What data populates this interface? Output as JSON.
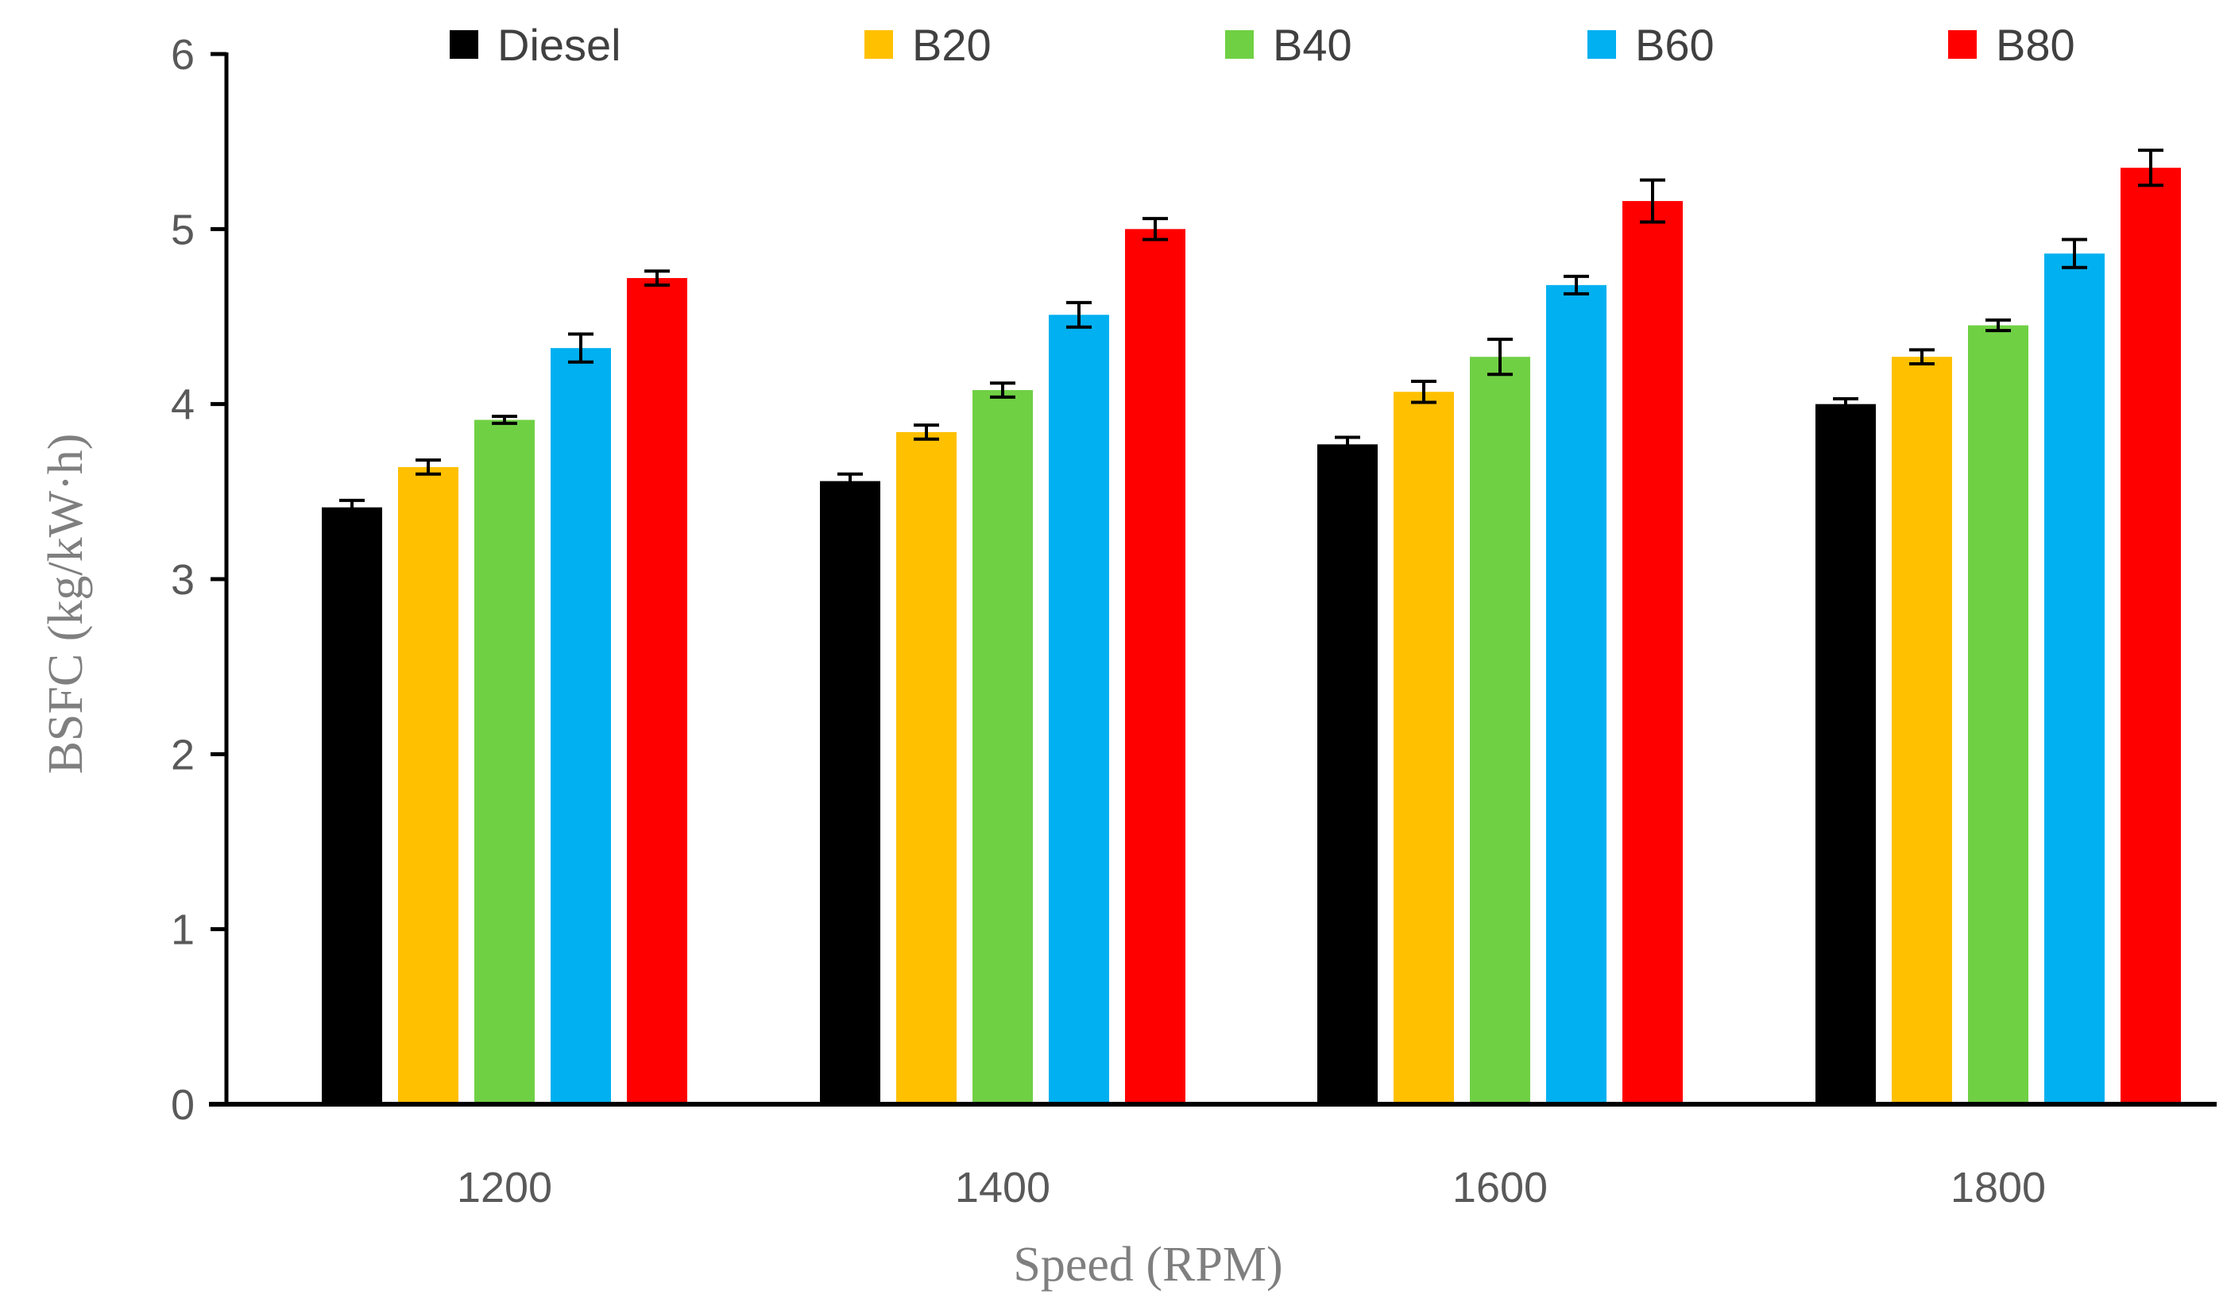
{
  "chart_data": {
    "type": "bar",
    "title": "",
    "xlabel": "Speed (RPM)",
    "ylabel": "BSFC (kg/kW·h)",
    "ylim": [
      0,
      6
    ],
    "yticks": [
      "0",
      "1",
      "2",
      "3",
      "4",
      "5",
      "6"
    ],
    "categories": [
      "1200",
      "1400",
      "1600",
      "1800"
    ],
    "legend_position": "top",
    "series": [
      {
        "name": "Diesel",
        "color": "#000000",
        "values": [
          3.41,
          3.56,
          3.77,
          4.0
        ],
        "errors": [
          0.04,
          0.04,
          0.04,
          0.03
        ]
      },
      {
        "name": "B20",
        "color": "#FFC000",
        "values": [
          3.64,
          3.84,
          4.07,
          4.27
        ],
        "errors": [
          0.04,
          0.04,
          0.06,
          0.04
        ]
      },
      {
        "name": "B40",
        "color": "#70D044",
        "values": [
          3.91,
          4.08,
          4.27,
          4.45
        ],
        "errors": [
          0.02,
          0.04,
          0.1,
          0.03
        ]
      },
      {
        "name": "B60",
        "color": "#00B0F0",
        "values": [
          4.32,
          4.51,
          4.68,
          4.86
        ],
        "errors": [
          0.08,
          0.07,
          0.05,
          0.08
        ]
      },
      {
        "name": "B80",
        "color": "#FF0000",
        "values": [
          4.72,
          5.0,
          5.16,
          5.35
        ],
        "errors": [
          0.04,
          0.06,
          0.12,
          0.1
        ]
      }
    ]
  }
}
